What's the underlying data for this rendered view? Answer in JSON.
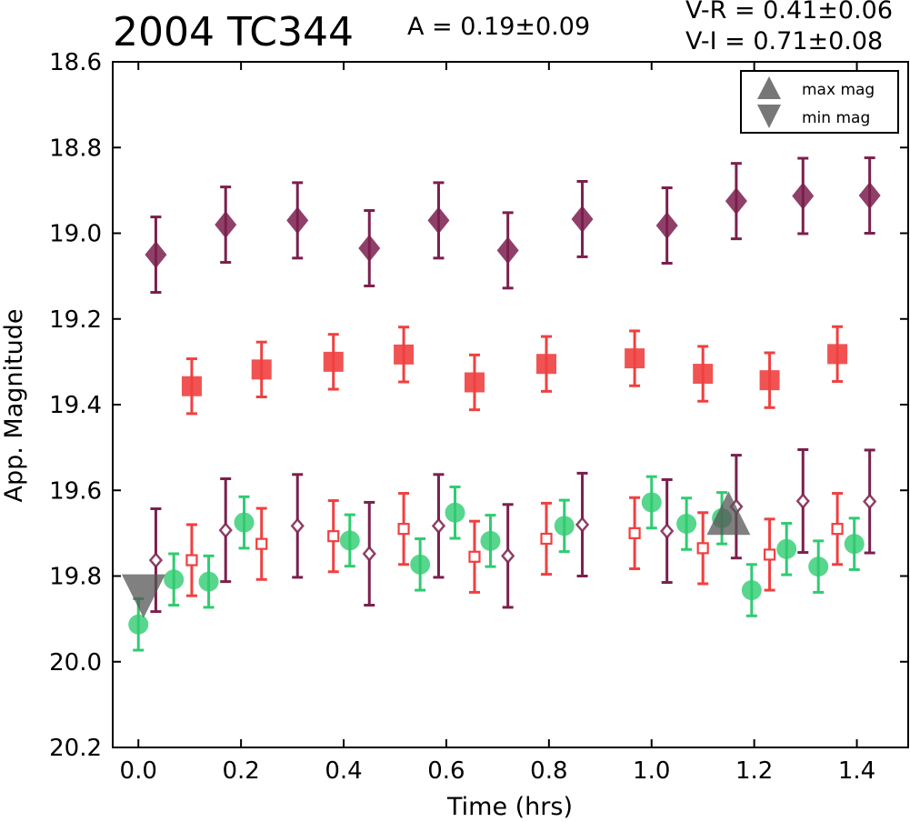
{
  "chart_data": {
    "type": "scatter",
    "title": "2004 TC344",
    "annotations": {
      "amplitude": "A  = 0.19±0.09",
      "v_r": "V-R = 0.41±0.06",
      "v_i": "V-I  = 0.71±0.08"
    },
    "xlabel": "Time (hrs)",
    "ylabel": "App. Magnitude",
    "xlim": [
      -0.05,
      1.5
    ],
    "ylim": [
      20.2,
      18.6
    ],
    "y_inverted": true,
    "xticks": [
      "0.0",
      "0.2",
      "0.4",
      "0.6",
      "0.8",
      "1.0",
      "1.2",
      "1.4"
    ],
    "xtick_values": [
      0.0,
      0.2,
      0.4,
      0.6,
      0.8,
      1.0,
      1.2,
      1.4
    ],
    "yticks": [
      "18.6",
      "18.8",
      "19.0",
      "19.2",
      "19.4",
      "19.6",
      "19.8",
      "20.0",
      "20.2"
    ],
    "ytick_values": [
      18.6,
      18.8,
      19.0,
      19.2,
      19.4,
      19.6,
      19.8,
      20.0,
      20.2
    ],
    "legend": {
      "position": "top-right",
      "entries": [
        "max mag",
        "min mag"
      ]
    },
    "series": [
      {
        "marker": "filled-diamond",
        "color": "#7b1f4e",
        "error": 0.088,
        "x": [
          0.034,
          0.17,
          0.31,
          0.45,
          0.585,
          0.72,
          0.865,
          1.03,
          1.165,
          1.295,
          1.425
        ],
        "y": [
          19.05,
          18.98,
          18.97,
          19.035,
          18.97,
          19.04,
          18.967,
          18.982,
          18.925,
          18.913,
          18.912
        ]
      },
      {
        "marker": "filled-square",
        "color": "#f04040",
        "error": 0.064,
        "x": [
          0.104,
          0.24,
          0.38,
          0.517,
          0.655,
          0.795,
          0.967,
          1.1,
          1.23,
          1.362
        ],
        "y": [
          19.357,
          19.318,
          19.3,
          19.283,
          19.348,
          19.305,
          19.292,
          19.328,
          19.343,
          19.282
        ]
      },
      {
        "marker": "filled-circle",
        "color": "#2ecc71",
        "error": 0.06,
        "x": [
          0.0,
          0.069,
          0.137,
          0.206,
          0.412,
          0.549,
          0.617,
          0.686,
          0.83,
          1.0,
          1.068,
          1.137,
          1.195,
          1.263,
          1.325,
          1.395
        ],
        "y": [
          19.913,
          19.808,
          19.813,
          19.675,
          19.717,
          19.773,
          19.652,
          19.718,
          19.683,
          19.628,
          19.678,
          19.665,
          19.833,
          19.737,
          19.778,
          19.725
        ]
      },
      {
        "marker": "open-square",
        "color": "#f04040",
        "error": 0.083,
        "x": [
          0.104,
          0.24,
          0.38,
          0.517,
          0.655,
          0.795,
          0.967,
          1.1,
          1.23,
          1.362
        ],
        "y": [
          19.763,
          19.725,
          19.707,
          19.69,
          19.755,
          19.713,
          19.7,
          19.735,
          19.75,
          19.69
        ]
      },
      {
        "marker": "open-diamond",
        "color": "#7b1f4e",
        "error": 0.12,
        "x": [
          0.034,
          0.17,
          0.31,
          0.45,
          0.585,
          0.72,
          0.865,
          1.03,
          1.165,
          1.295,
          1.425
        ],
        "y": [
          19.763,
          19.693,
          19.683,
          19.748,
          19.683,
          19.753,
          19.68,
          19.695,
          19.638,
          19.625,
          19.626
        ]
      },
      {
        "marker": "triangle-up",
        "color": "#555555",
        "name": "max mag",
        "x": [
          1.15
        ],
        "y": [
          19.67
        ]
      },
      {
        "marker": "triangle-down",
        "color": "#555555",
        "name": "min mag",
        "x": [
          0.01
        ],
        "y": [
          19.83
        ]
      }
    ]
  }
}
